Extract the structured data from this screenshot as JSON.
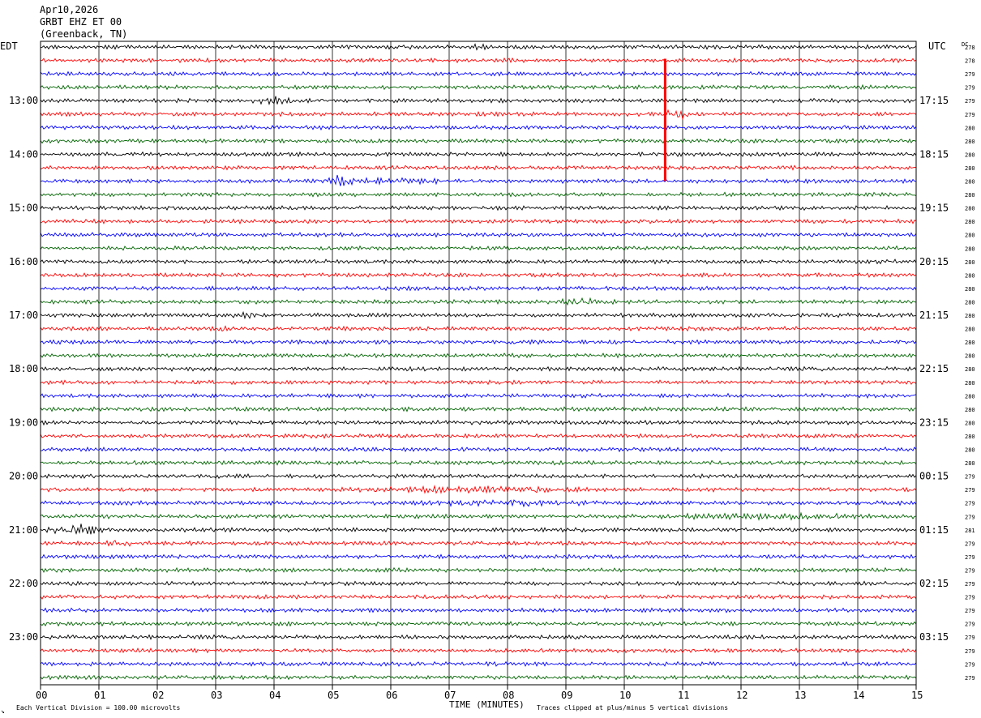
{
  "header": {
    "date": "Apr10,2026",
    "station": "GRBT EHZ ET 00",
    "location": "(Greenback, TN)"
  },
  "labels": {
    "left_tz": "EDT",
    "right_tz": "UTC",
    "dc": "DC",
    "xlabel": "TIME (MINUTES)",
    "scale_note": "Each Vertical Division =  100.00 microvolts",
    "clip_note": "Traces clipped at plus/minus 5 vertical divisions",
    "corner_mark": "↘"
  },
  "colors": {
    "trace_cycle": [
      "#000000",
      "#ff0000",
      "#0000ff",
      "#006400"
    ],
    "grid": "#000000",
    "background": "#ffffff"
  },
  "chart_data": {
    "type": "line",
    "subtype": "helicorder",
    "title": "GRBT EHZ ET 00",
    "xlabel": "TIME (MINUTES)",
    "xlim": [
      0,
      15
    ],
    "x_ticks": [
      "00",
      "01",
      "02",
      "03",
      "04",
      "05",
      "06",
      "07",
      "08",
      "09",
      "10",
      "11",
      "12",
      "13",
      "14",
      "15"
    ],
    "rows_per_hour": 4,
    "minutes_per_row": 15,
    "row_count": 48,
    "left_hour_labels": [
      "13:00",
      "14:00",
      "15:00",
      "16:00",
      "17:00",
      "18:00",
      "19:00",
      "20:00",
      "21:00",
      "22:00",
      "23:00"
    ],
    "right_hour_labels": [
      "17:15",
      "18:15",
      "19:15",
      "20:15",
      "21:15",
      "22:15",
      "23:15",
      "00:15",
      "01:15",
      "02:15",
      "03:15"
    ],
    "hour_label_first_row": 4,
    "dc_offsets": [
      278,
      278,
      279,
      279,
      279,
      279,
      280,
      280,
      280,
      280,
      280,
      280,
      280,
      280,
      280,
      280,
      280,
      280,
      280,
      280,
      280,
      280,
      280,
      280,
      280,
      280,
      280,
      280,
      280,
      280,
      280,
      280,
      279,
      279,
      279,
      279,
      281,
      279,
      279,
      279,
      279,
      279,
      279,
      279,
      279,
      279,
      279,
      279
    ],
    "events": [
      {
        "row": 0,
        "start_min": 7.2,
        "end_min": 7.9,
        "amp": 1.6
      },
      {
        "row": 4,
        "start_min": 3.6,
        "end_min": 4.4,
        "amp": 2.2
      },
      {
        "row": 5,
        "start_min": 10.7,
        "end_min": 11.1,
        "amp": 3.0
      },
      {
        "row": 10,
        "start_min": 4.3,
        "end_min": 7.8,
        "amp": 1.7
      },
      {
        "row": 10,
        "start_min": 4.9,
        "end_min": 5.4,
        "amp": 3.2
      },
      {
        "row": 19,
        "start_min": 8.6,
        "end_min": 10.0,
        "amp": 2.0
      },
      {
        "row": 20,
        "start_min": 3.2,
        "end_min": 3.8,
        "amp": 2.2
      },
      {
        "row": 21,
        "start_min": 2.8,
        "end_min": 3.3,
        "amp": 1.6
      },
      {
        "row": 33,
        "start_min": 4.0,
        "end_min": 10.5,
        "amp": 1.8
      },
      {
        "row": 34,
        "start_min": 4.8,
        "end_min": 10.8,
        "amp": 1.6
      },
      {
        "row": 35,
        "start_min": 9.5,
        "end_min": 15.0,
        "amp": 1.8
      },
      {
        "row": 36,
        "start_min": 0.0,
        "end_min": 1.2,
        "amp": 3.0
      },
      {
        "row": 37,
        "start_min": 1.1,
        "end_min": 1.6,
        "amp": 2.2
      }
    ],
    "clipped_spike": {
      "row": 1,
      "minute": 10.7,
      "end_row": 10
    }
  }
}
